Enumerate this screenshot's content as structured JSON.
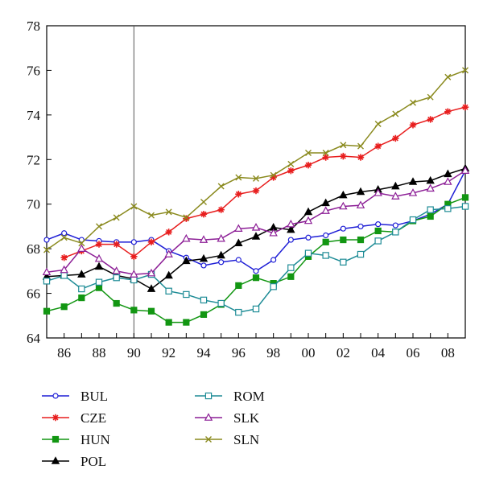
{
  "chart_data": {
    "type": "line",
    "title": "",
    "xlabel": "",
    "ylabel": "",
    "x": [
      1985,
      1986,
      1987,
      1988,
      1989,
      1990,
      1991,
      1992,
      1993,
      1994,
      1995,
      1996,
      1997,
      1998,
      1999,
      2000,
      2001,
      2002,
      2003,
      2004,
      2005,
      2006,
      2007,
      2008,
      2009
    ],
    "xlim": [
      1985,
      2009
    ],
    "ylim": [
      64,
      78
    ],
    "x_ticks": [
      1986,
      1988,
      1990,
      1992,
      1994,
      1996,
      1998,
      2000,
      2002,
      2004,
      2006,
      2008
    ],
    "x_tick_labels": [
      "86",
      "88",
      "90",
      "92",
      "94",
      "96",
      "98",
      "00",
      "02",
      "04",
      "06",
      "08"
    ],
    "y_ticks": [
      64,
      66,
      68,
      70,
      72,
      74,
      76,
      78
    ],
    "y_tick_labels": [
      "64",
      "66",
      "68",
      "70",
      "72",
      "74",
      "76",
      "78"
    ],
    "vertical_reference_line_x": 1990,
    "grid": false,
    "legend_position": "bottom",
    "series": [
      {
        "name": "BUL",
        "color": "#1f1fd6",
        "marker": "circle",
        "values": [
          68.4,
          68.7,
          68.4,
          68.35,
          68.3,
          68.3,
          68.4,
          67.9,
          67.6,
          67.25,
          67.4,
          67.5,
          67.0,
          67.5,
          68.4,
          68.5,
          68.6,
          68.9,
          69.0,
          69.1,
          69.05,
          69.25,
          69.55,
          70.0,
          71.5
        ]
      },
      {
        "name": "CZE",
        "color": "#e81e1e",
        "marker": "star",
        "values": [
          null,
          67.6,
          67.9,
          68.2,
          68.2,
          67.65,
          68.3,
          68.75,
          69.35,
          69.55,
          69.75,
          70.45,
          70.6,
          71.2,
          71.5,
          71.75,
          72.1,
          72.15,
          72.1,
          72.6,
          72.95,
          73.55,
          73.8,
          74.15,
          74.35
        ]
      },
      {
        "name": "HUN",
        "color": "#129612",
        "marker": "square",
        "values": [
          65.2,
          65.4,
          65.8,
          66.25,
          65.55,
          65.25,
          65.2,
          64.7,
          64.7,
          65.05,
          65.5,
          66.35,
          66.7,
          66.45,
          66.75,
          67.65,
          68.3,
          68.4,
          68.4,
          68.8,
          68.75,
          69.25,
          69.45,
          70.0,
          70.3
        ]
      },
      {
        "name": "POL",
        "color": "#000000",
        "marker": "triangle",
        "values": [
          66.75,
          66.8,
          66.85,
          67.2,
          66.8,
          66.65,
          66.2,
          66.8,
          67.45,
          67.55,
          67.7,
          68.25,
          68.55,
          68.95,
          68.85,
          69.65,
          70.05,
          70.4,
          70.55,
          70.65,
          70.8,
          71.0,
          71.05,
          71.35,
          71.6
        ]
      },
      {
        "name": "ROM",
        "color": "#1e8c96",
        "marker": "square-open",
        "values": [
          66.55,
          66.8,
          66.2,
          66.5,
          66.7,
          66.6,
          66.85,
          66.1,
          65.95,
          65.7,
          65.55,
          65.15,
          65.3,
          66.3,
          67.15,
          67.8,
          67.7,
          67.4,
          67.75,
          68.35,
          68.75,
          69.3,
          69.75,
          69.8,
          69.9
        ]
      },
      {
        "name": "SLK",
        "color": "#8c1e96",
        "marker": "triangle-open",
        "values": [
          66.95,
          67.05,
          68.0,
          67.55,
          67.0,
          66.85,
          66.9,
          67.75,
          68.45,
          68.4,
          68.45,
          68.9,
          68.95,
          68.7,
          69.1,
          69.25,
          69.7,
          69.9,
          69.95,
          70.5,
          70.35,
          70.5,
          70.7,
          71.0,
          71.5
        ]
      },
      {
        "name": "SLN",
        "color": "#8a8a1e",
        "marker": "x",
        "values": [
          67.95,
          68.5,
          68.25,
          69.0,
          69.4,
          69.9,
          69.5,
          69.65,
          69.4,
          70.1,
          70.8,
          71.2,
          71.15,
          71.3,
          71.8,
          72.3,
          72.3,
          72.65,
          72.6,
          73.6,
          74.05,
          74.55,
          74.8,
          75.7,
          76.0
        ]
      }
    ]
  }
}
